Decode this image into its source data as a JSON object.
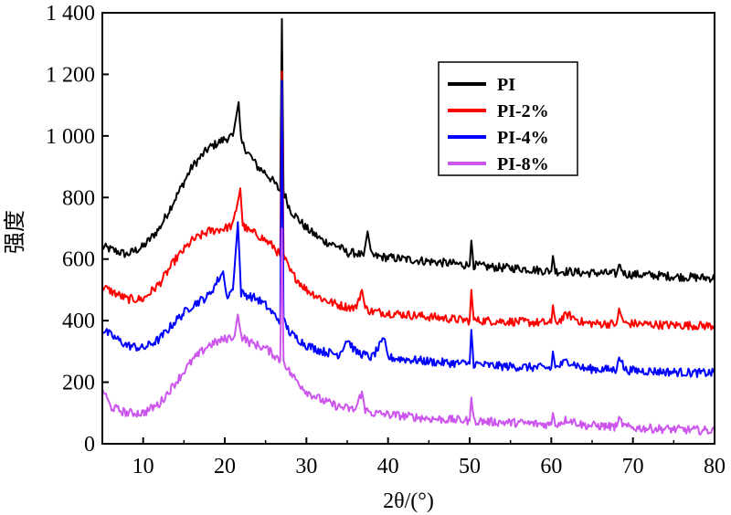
{
  "chart_data": {
    "type": "line",
    "xlabel": "2θ/(°)",
    "ylabel": "强度",
    "xlim": [
      5,
      80
    ],
    "ylim": [
      0,
      1400
    ],
    "x_ticks": [
      10,
      20,
      30,
      40,
      50,
      60,
      70,
      80
    ],
    "x_tick_labels": [
      "10",
      "20",
      "30",
      "40",
      "50",
      "60",
      "70",
      "80"
    ],
    "y_ticks": [
      0,
      200,
      400,
      600,
      800,
      1000,
      1200,
      1400
    ],
    "y_tick_labels": [
      "0",
      "200",
      "400",
      "600",
      "800",
      "1 000",
      "1 200",
      "1 400"
    ],
    "grid": false,
    "legend_position": "top-right",
    "series": [
      {
        "name": "PI",
        "color": "#000000",
        "x": [
          5,
          8,
          10,
          12,
          14,
          16,
          18,
          20,
          21,
          21.7,
          22,
          23,
          24,
          25,
          26,
          26.8,
          27.0,
          27.2,
          28,
          30,
          32,
          34,
          35,
          36,
          37,
          37.5,
          38,
          40,
          42,
          44,
          46,
          48,
          50,
          50.2,
          50.5,
          52,
          54,
          56,
          58,
          60,
          60.2,
          60.5,
          62,
          64,
          66,
          68,
          68.3,
          69,
          70,
          72,
          74,
          76,
          78,
          80
        ],
        "y": [
          640,
          615,
          640,
          700,
          800,
          900,
          960,
          990,
          1000,
          1110,
          980,
          940,
          900,
          880,
          850,
          820,
          1380,
          820,
          760,
          700,
          660,
          640,
          620,
          620,
          610,
          690,
          610,
          605,
          600,
          595,
          590,
          585,
          580,
          660,
          580,
          575,
          572,
          570,
          565,
          560,
          610,
          560,
          560,
          555,
          555,
          552,
          580,
          552,
          550,
          548,
          545,
          542,
          540,
          538
        ]
      },
      {
        "name": "PI-2%",
        "color": "#ff0000",
        "x": [
          5,
          8,
          10,
          12,
          14,
          16,
          18,
          20,
          21,
          21.9,
          22.2,
          23,
          24,
          25,
          26,
          26.8,
          27.0,
          27.2,
          28,
          30,
          32,
          34,
          36,
          36.8,
          37.2,
          38,
          40,
          42,
          44,
          46,
          48,
          50,
          50.2,
          50.5,
          52,
          54,
          56,
          58,
          60,
          60.2,
          60.5,
          62,
          64,
          66,
          68,
          68.3,
          69,
          70,
          72,
          74,
          76,
          78,
          80
        ],
        "y": [
          510,
          470,
          470,
          520,
          600,
          660,
          690,
          700,
          710,
          830,
          710,
          690,
          680,
          660,
          640,
          610,
          1210,
          610,
          560,
          500,
          470,
          450,
          440,
          500,
          440,
          430,
          425,
          420,
          415,
          410,
          405,
          400,
          500,
          400,
          400,
          398,
          396,
          394,
          392,
          450,
          392,
          420,
          392,
          390,
          390,
          430,
          390,
          390,
          388,
          386,
          385,
          384,
          383
        ]
      },
      {
        "name": "PI-4%",
        "color": "#0000ff",
        "x": [
          5,
          8,
          10,
          12,
          14,
          16,
          18,
          19.8,
          20.2,
          21,
          21.6,
          22,
          23,
          24,
          25,
          26,
          26.8,
          27.0,
          27.2,
          28,
          30,
          32,
          34,
          35,
          36,
          38,
          39.6,
          40,
          42,
          44,
          46,
          48,
          50,
          50.2,
          50.5,
          52,
          54,
          56,
          58,
          60,
          60.2,
          60.5,
          62,
          64,
          66,
          68,
          68.3,
          69,
          70,
          72,
          74,
          76,
          78,
          80
        ],
        "y": [
          370,
          320,
          310,
          340,
          400,
          450,
          480,
          560,
          480,
          500,
          720,
          490,
          480,
          470,
          450,
          420,
          400,
          1180,
          400,
          360,
          320,
          300,
          290,
          340,
          300,
          280,
          340,
          280,
          275,
          270,
          265,
          262,
          260,
          370,
          260,
          255,
          252,
          250,
          248,
          246,
          300,
          246,
          270,
          244,
          242,
          240,
          290,
          240,
          238,
          236,
          234,
          232,
          230,
          230
        ]
      },
      {
        "name": "PI-8%",
        "color": "#cc55ee",
        "x": [
          5,
          6,
          8,
          10,
          12,
          14,
          16,
          18,
          20,
          21.2,
          21.6,
          22,
          23,
          24,
          25,
          26,
          26.8,
          27.0,
          27.2,
          28,
          30,
          32,
          34,
          36,
          36.8,
          37.2,
          38,
          40,
          42,
          44,
          46,
          48,
          50,
          50.2,
          50.5,
          52,
          54,
          56,
          58,
          60,
          60.2,
          60.5,
          62,
          64,
          66,
          68,
          68.3,
          69,
          70,
          72,
          74,
          76,
          78,
          80
        ],
        "y": [
          180,
          120,
          100,
          100,
          130,
          200,
          270,
          320,
          340,
          350,
          420,
          350,
          330,
          320,
          310,
          290,
          270,
          700,
          270,
          230,
          170,
          140,
          120,
          110,
          170,
          110,
          100,
          95,
          90,
          85,
          80,
          78,
          75,
          150,
          75,
          72,
          70,
          68,
          65,
          62,
          100,
          62,
          80,
          60,
          58,
          55,
          80,
          55,
          52,
          50,
          48,
          46,
          44,
          42
        ]
      }
    ]
  }
}
